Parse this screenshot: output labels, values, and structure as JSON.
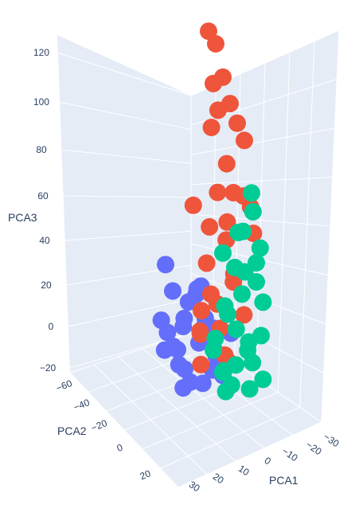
{
  "chart_data": {
    "type": "scatter",
    "projection": "3d",
    "title": "",
    "xlabel": "PCA1",
    "ylabel": "PCA2",
    "zlabel": "PCA3",
    "x_ticks": [
      "30",
      "20",
      "10",
      "0",
      "−10",
      "−20",
      "−30"
    ],
    "y_ticks": [
      "−60",
      "−40",
      "−20",
      "0",
      "20"
    ],
    "z_ticks": [
      "120",
      "100",
      "80",
      "60",
      "40",
      "20",
      "0",
      "−20"
    ],
    "zlim": [
      -20,
      125
    ],
    "grid": true,
    "background_color": "#e5ecf6",
    "grid_color": "#ffffff",
    "series": [
      {
        "color": "#636efa",
        "points": [
          [
            -2,
            -20,
            -10
          ],
          [
            5,
            -30,
            0
          ],
          [
            8,
            -25,
            5
          ],
          [
            10,
            -20,
            -5
          ],
          [
            15,
            -10,
            -15
          ],
          [
            -5,
            -5,
            -12
          ],
          [
            3,
            0,
            -18
          ],
          [
            12,
            5,
            -20
          ],
          [
            20,
            -15,
            -8
          ],
          [
            18,
            -30,
            10
          ],
          [
            25,
            -25,
            15
          ],
          [
            22,
            -35,
            -2
          ],
          [
            6,
            -40,
            -14
          ],
          [
            0,
            -30,
            -20
          ],
          [
            -8,
            -15,
            2
          ],
          [
            14,
            -5,
            8
          ],
          [
            9,
            -12,
            20
          ],
          [
            28,
            -20,
            -10
          ],
          [
            16,
            -38,
            12
          ],
          [
            2,
            -18,
            -6
          ],
          [
            11,
            -28,
            18
          ],
          [
            24,
            -10,
            0
          ],
          [
            7,
            10,
            -16
          ],
          [
            -4,
            8,
            -10
          ],
          [
            19,
            -2,
            -4
          ],
          [
            30,
            -30,
            25
          ],
          [
            13,
            -45,
            -8
          ],
          [
            5,
            -8,
            4
          ],
          [
            21,
            -22,
            -16
          ],
          [
            26,
            -5,
            6
          ]
        ]
      },
      {
        "color": "#ef553b",
        "points": [
          [
            15,
            -60,
            122
          ],
          [
            10,
            -55,
            118
          ],
          [
            5,
            -50,
            105
          ],
          [
            12,
            -58,
            100
          ],
          [
            0,
            -45,
            95
          ],
          [
            8,
            -52,
            90
          ],
          [
            -5,
            -40,
            88
          ],
          [
            14,
            -62,
            80
          ],
          [
            -10,
            -35,
            82
          ],
          [
            -2,
            -30,
            72
          ],
          [
            -12,
            -25,
            60
          ],
          [
            -8,
            -20,
            62
          ],
          [
            -15,
            -28,
            55
          ],
          [
            4,
            -35,
            58
          ],
          [
            -6,
            -15,
            50
          ],
          [
            -18,
            -22,
            45
          ],
          [
            2,
            -10,
            48
          ],
          [
            18,
            -40,
            50
          ],
          [
            -3,
            -25,
            40
          ],
          [
            6,
            -20,
            30
          ],
          [
            -10,
            -12,
            25
          ],
          [
            0,
            -5,
            20
          ],
          [
            -14,
            -18,
            10
          ],
          [
            -4,
            -8,
            5
          ],
          [
            8,
            -15,
            0
          ],
          [
            -8,
            -2,
            -5
          ],
          [
            4,
            0,
            -10
          ],
          [
            -2,
            -10,
            15
          ],
          [
            10,
            -25,
            8
          ],
          [
            -6,
            -20,
            -12
          ],
          [
            12,
            -30,
            -2
          ],
          [
            -12,
            -5,
            30
          ]
        ]
      },
      {
        "color": "#00cc96",
        "points": [
          [
            -20,
            -10,
            65
          ],
          [
            -22,
            -5,
            58
          ],
          [
            -18,
            0,
            50
          ],
          [
            -25,
            -8,
            42
          ],
          [
            -15,
            5,
            35
          ],
          [
            -20,
            10,
            25
          ],
          [
            -28,
            -2,
            20
          ],
          [
            -12,
            8,
            15
          ],
          [
            -24,
            12,
            5
          ],
          [
            -18,
            15,
            -5
          ],
          [
            -10,
            10,
            -10
          ],
          [
            -26,
            18,
            -14
          ],
          [
            -14,
            20,
            -16
          ],
          [
            -22,
            6,
            0
          ],
          [
            -30,
            10,
            8
          ],
          [
            -16,
            -12,
            30
          ],
          [
            -8,
            2,
            40
          ],
          [
            -20,
            22,
            12
          ],
          [
            -12,
            16,
            -8
          ],
          [
            -28,
            20,
            -2
          ],
          [
            -6,
            14,
            0
          ],
          [
            -24,
            -4,
            28
          ],
          [
            -10,
            6,
            18
          ],
          [
            -18,
            24,
            -12
          ],
          [
            -14,
            -6,
            48
          ],
          [
            -26,
            4,
            38
          ],
          [
            -8,
            18,
            6
          ],
          [
            -32,
            14,
            -10
          ]
        ]
      }
    ]
  }
}
